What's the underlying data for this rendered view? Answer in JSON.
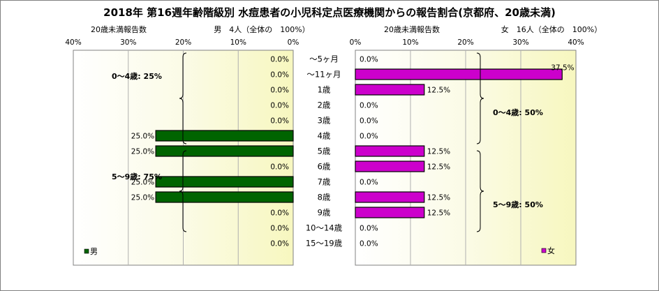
{
  "title": "2018年 第16週年齢階級別 水痘患者の小児科定点医療機関からの報告割合(京都府、20歳未満)",
  "chart_data": [
    {
      "type": "bar",
      "orientation": "horizontal",
      "direction": "right-to-left",
      "axis_label": "20歳未満報告数",
      "header": "男　4人（全体の　100%）",
      "xlim": [
        0,
        40
      ],
      "tick_values": [
        40,
        30,
        20,
        10,
        0
      ],
      "tick_labels": [
        "40%",
        "30%",
        "20%",
        "10%",
        "0%"
      ],
      "series": [
        {
          "name": "男",
          "color": "#006400",
          "values": [
            0,
            0,
            0,
            0,
            0,
            25,
            25,
            0,
            25,
            25,
            0,
            0,
            0
          ],
          "labels": [
            "0.0%",
            "0.0%",
            "0.0%",
            "0.0%",
            "0.0%",
            "25.0%",
            "25.0%",
            "0.0%",
            "25.0%",
            "25.0%",
            "0.0%",
            "0.0%",
            "0.0%"
          ]
        }
      ],
      "groups": [
        {
          "label": "0～4歳: 25%",
          "from": 0,
          "to": 5
        },
        {
          "label": "5～9歳: 75%",
          "from": 6,
          "to": 10
        }
      ],
      "legend": "bottom-left",
      "grid": true
    },
    {
      "type": "bar",
      "orientation": "horizontal",
      "direction": "left-to-right",
      "axis_label": "20歳未満報告数",
      "header": "女　16人（全体の　100%）",
      "xlim": [
        0,
        40
      ],
      "tick_values": [
        0,
        10,
        20,
        30,
        40
      ],
      "tick_labels": [
        "0%",
        "10%",
        "20%",
        "30%",
        "40%"
      ],
      "series": [
        {
          "name": "女",
          "color": "#cc00cc",
          "values": [
            0,
            37.5,
            12.5,
            0,
            0,
            0,
            12.5,
            12.5,
            0,
            12.5,
            12.5,
            0,
            0
          ],
          "labels": [
            "0.0%",
            "37.5%",
            "12.5%",
            "0.0%",
            "0.0%",
            "0.0%",
            "12.5%",
            "12.5%",
            "0.0%",
            "12.5%",
            "12.5%",
            "0.0%",
            "0.0%"
          ]
        }
      ],
      "groups": [
        {
          "label": "0～4歳: 50%",
          "from": 0,
          "to": 5
        },
        {
          "label": "5～9歳: 50%",
          "from": 6,
          "to": 10
        }
      ],
      "legend": "bottom-right",
      "grid": true
    }
  ],
  "categories": [
    "～5ヶ月",
    "～11ヶ月",
    "1歳",
    "2歳",
    "3歳",
    "4歳",
    "5歳",
    "6歳",
    "7歳",
    "8歳",
    "9歳",
    "10～14歳",
    "15～19歳"
  ]
}
